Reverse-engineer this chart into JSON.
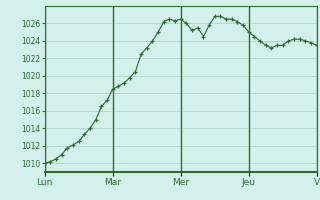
{
  "background_color": "#d4f0ea",
  "grid_color": "#a8cfc0",
  "line_color": "#2d6e2d",
  "marker_color": "#2d6e2d",
  "ylim": [
    1009,
    1028
  ],
  "yticks": [
    1010,
    1012,
    1014,
    1016,
    1018,
    1020,
    1022,
    1024,
    1026
  ],
  "day_labels": [
    "Lun",
    "Mar",
    "Mer",
    "Jeu",
    "V"
  ],
  "day_positions": [
    0,
    12,
    24,
    36,
    48
  ],
  "x_values": [
    0,
    1,
    2,
    3,
    4,
    5,
    6,
    7,
    8,
    9,
    10,
    11,
    12,
    13,
    14,
    15,
    16,
    17,
    18,
    19,
    20,
    21,
    22,
    23,
    24,
    25,
    26,
    27,
    28,
    29,
    30,
    31,
    32,
    33,
    34,
    35,
    36,
    37,
    38,
    39,
    40,
    41,
    42,
    43,
    44,
    45,
    46,
    47,
    48
  ],
  "y_values": [
    1010.0,
    1010.2,
    1010.5,
    1011.0,
    1011.8,
    1012.1,
    1012.5,
    1013.3,
    1014.0,
    1015.0,
    1016.5,
    1017.2,
    1018.5,
    1018.8,
    1019.2,
    1019.8,
    1020.5,
    1022.5,
    1023.2,
    1024.0,
    1025.0,
    1026.2,
    1026.5,
    1026.3,
    1026.5,
    1026.0,
    1025.2,
    1025.5,
    1024.5,
    1025.8,
    1026.8,
    1026.8,
    1026.5,
    1026.5,
    1026.2,
    1025.8,
    1025.0,
    1024.5,
    1024.0,
    1023.5,
    1023.2,
    1023.5,
    1023.5,
    1024.0,
    1024.2,
    1024.2,
    1024.0,
    1023.8,
    1023.5
  ],
  "fig_width": 3.2,
  "fig_height": 2.0,
  "dpi": 100
}
